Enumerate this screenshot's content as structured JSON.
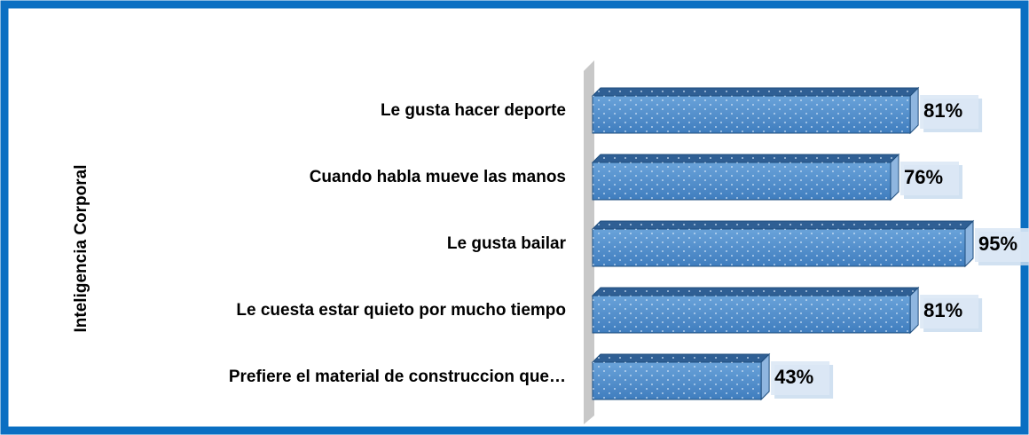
{
  "chart_data": {
    "type": "bar",
    "orientation": "horizontal",
    "y_label": "Inteligencia Corporal",
    "categories": [
      "Le gusta hacer deporte",
      "Cuando habla mueve las manos",
      "Le gusta bailar",
      "Le cuesta estar quieto por mucho tiempo",
      "Prefiere el material de construccion que…"
    ],
    "values": [
      81,
      76,
      95,
      81,
      43
    ],
    "value_labels": [
      "81%",
      "76%",
      "95%",
      "81%",
      "43%"
    ],
    "color": "#4f8fd0"
  }
}
